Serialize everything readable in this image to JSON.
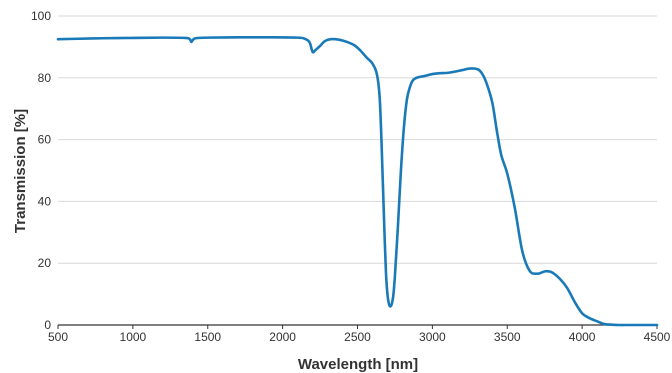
{
  "chart_data": {
    "type": "line",
    "title": "",
    "xlabel": "Wavelength [nm]",
    "ylabel": "Transmission [%]",
    "xlim": [
      500,
      4500
    ],
    "ylim": [
      0,
      100
    ],
    "xticks": [
      500,
      1000,
      1500,
      2000,
      2500,
      3000,
      3500,
      4000,
      4500
    ],
    "yticks": [
      0,
      20,
      40,
      60,
      80,
      100
    ],
    "grid": "horizontal",
    "legend": "none",
    "colors": {
      "series": "#1a7ab8",
      "grid": "#d9d9d9",
      "axis": "#333333",
      "text": "#333333"
    },
    "series": [
      {
        "x": [
          500,
          600,
          800,
          1000,
          1200,
          1350,
          1380,
          1390,
          1400,
          1420,
          1500,
          1700,
          1900,
          2100,
          2150,
          2180,
          2200,
          2220,
          2250,
          2280,
          2320,
          2380,
          2430,
          2480,
          2520,
          2560,
          2600,
          2630,
          2650,
          2670,
          2680,
          2690,
          2700,
          2710,
          2720,
          2730,
          2740,
          2750,
          2770,
          2790,
          2810,
          2830,
          2850,
          2870,
          2900,
          2950,
          3000,
          3050,
          3100,
          3150,
          3200,
          3250,
          3300,
          3330,
          3360,
          3400,
          3430,
          3460,
          3500,
          3550,
          3600,
          3650,
          3700,
          3730,
          3760,
          3800,
          3850,
          3900,
          3950,
          4000,
          4050,
          4100,
          4150,
          4200,
          4250,
          4300,
          4350,
          4400,
          4500
        ],
        "y": [
          92.5,
          92.6,
          92.8,
          92.9,
          93.0,
          92.9,
          92.5,
          91.6,
          92.2,
          92.8,
          93.0,
          93.1,
          93.1,
          93.0,
          92.6,
          91.5,
          88.4,
          89.0,
          90.3,
          91.8,
          92.5,
          92.3,
          91.6,
          90.5,
          88.8,
          86.6,
          84.6,
          81.0,
          72.0,
          45.0,
          30.0,
          17.0,
          10.0,
          6.8,
          6.0,
          7.0,
          10.0,
          16.0,
          32.0,
          50.0,
          64.0,
          73.0,
          77.0,
          79.2,
          80.1,
          80.6,
          81.2,
          81.5,
          81.6,
          82.0,
          82.5,
          83.0,
          82.8,
          81.5,
          78.5,
          72.0,
          63.0,
          55.0,
          49.0,
          38.0,
          24.0,
          17.5,
          16.6,
          17.0,
          17.4,
          17.0,
          15.0,
          12.0,
          7.5,
          3.8,
          2.2,
          1.2,
          0.3,
          0.1,
          0.0,
          0.0,
          0.0,
          0.0,
          0.0
        ]
      }
    ]
  }
}
